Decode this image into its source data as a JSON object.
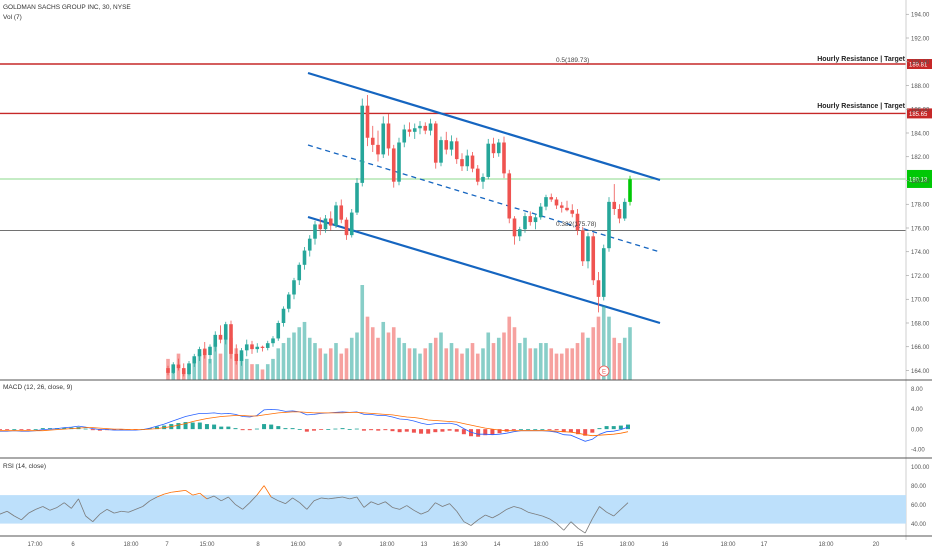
{
  "header": {
    "symbol_line": "GOLDMAN SACHS GROUP INC, 30, NYSE",
    "volume_label": "Vol (7)",
    "macd_label": "MACD (12, 26, close, 9)",
    "rsi_label": "RSI (14, close)"
  },
  "colors": {
    "up": "#26a69a",
    "down": "#ef5350",
    "bright_up": "#00c805",
    "resistance": "#c62828",
    "channel": "#1565c0",
    "fib_line": "#555555",
    "green_level": "#8bd88b",
    "rsi_band": "#bde0fb",
    "macd_line": "#2962ff",
    "signal_line": "#ff6d00",
    "rsi_line": "#7a7a7a",
    "rsi_over": "#ff6d00"
  },
  "annotations": {
    "fib_05": "0.5(189.73)",
    "fib_0382": "0.382(175.78)",
    "resistance_top": "Hourly Resistance | Target",
    "resistance_mid": "Hourly Resistance | Target",
    "earnings_marker": "E"
  },
  "chart_data": {
    "type": "candlestick",
    "symbol": "GOLDMAN SACHS GROUP INC",
    "interval": "30",
    "exchange": "NYSE",
    "x_ticks": [
      "17:00",
      "6",
      "18:00",
      "7",
      "15:00",
      "8",
      "16:00",
      "9",
      "18:00",
      "13",
      "16:30",
      "14",
      "18:00",
      "15",
      "18:00",
      "16",
      "18:00",
      "17",
      "18:00",
      "20"
    ],
    "price_axis": {
      "ticks": [
        194.0,
        192.0,
        190.0,
        188.0,
        186.0,
        184.0,
        182.0,
        180.0,
        178.0,
        176.0,
        174.0,
        172.0,
        170.0,
        168.0,
        166.0,
        164.0
      ],
      "range": [
        163.2,
        195.2
      ]
    },
    "levels": [
      {
        "label": "Hourly Resistance | Target",
        "price": "189.81"
      },
      {
        "label": "Hourly Resistance | Target",
        "price": "185.65"
      }
    ],
    "green_level_price": "180.13",
    "fib_0382_price": 175.78,
    "candles": [
      {
        "o": 164.2,
        "h": 164.4,
        "l": 163.6,
        "c": 163.8
      },
      {
        "o": 163.8,
        "h": 164.7,
        "l": 163.7,
        "c": 164.5
      },
      {
        "o": 164.5,
        "h": 165.0,
        "l": 164.0,
        "c": 164.2
      },
      {
        "o": 164.2,
        "h": 164.6,
        "l": 163.5,
        "c": 163.7
      },
      {
        "o": 163.7,
        "h": 164.8,
        "l": 163.6,
        "c": 164.6
      },
      {
        "o": 164.6,
        "h": 165.4,
        "l": 164.3,
        "c": 165.2
      },
      {
        "o": 165.2,
        "h": 166.0,
        "l": 164.8,
        "c": 165.8
      },
      {
        "o": 165.8,
        "h": 166.4,
        "l": 165.0,
        "c": 165.3
      },
      {
        "o": 165.3,
        "h": 166.2,
        "l": 164.6,
        "c": 166.0
      },
      {
        "o": 166.0,
        "h": 167.3,
        "l": 165.6,
        "c": 167.0
      },
      {
        "o": 167.0,
        "h": 167.8,
        "l": 166.3,
        "c": 166.6
      },
      {
        "o": 166.6,
        "h": 168.1,
        "l": 166.2,
        "c": 167.9
      },
      {
        "o": 167.9,
        "h": 168.2,
        "l": 165.0,
        "c": 165.4
      },
      {
        "o": 165.4,
        "h": 166.2,
        "l": 164.5,
        "c": 164.8
      },
      {
        "o": 164.8,
        "h": 165.9,
        "l": 164.4,
        "c": 165.7
      },
      {
        "o": 165.7,
        "h": 166.6,
        "l": 165.2,
        "c": 166.2
      },
      {
        "o": 166.2,
        "h": 166.5,
        "l": 165.4,
        "c": 165.8
      },
      {
        "o": 165.8,
        "h": 166.3,
        "l": 165.5,
        "c": 166.0
      },
      {
        "o": 166.0,
        "h": 166.1,
        "l": 165.6,
        "c": 165.9
      },
      {
        "o": 165.9,
        "h": 166.5,
        "l": 165.7,
        "c": 166.3
      },
      {
        "o": 166.3,
        "h": 166.9,
        "l": 166.0,
        "c": 166.7
      },
      {
        "o": 166.7,
        "h": 168.2,
        "l": 166.5,
        "c": 168.0
      },
      {
        "o": 168.0,
        "h": 169.4,
        "l": 167.7,
        "c": 169.2
      },
      {
        "o": 169.2,
        "h": 170.6,
        "l": 168.9,
        "c": 170.4
      },
      {
        "o": 170.4,
        "h": 171.8,
        "l": 170.0,
        "c": 171.6
      },
      {
        "o": 171.6,
        "h": 173.1,
        "l": 171.2,
        "c": 172.9
      },
      {
        "o": 172.9,
        "h": 174.4,
        "l": 172.5,
        "c": 174.1
      },
      {
        "o": 174.1,
        "h": 175.4,
        "l": 173.6,
        "c": 175.1
      },
      {
        "o": 175.1,
        "h": 176.6,
        "l": 174.6,
        "c": 176.3
      },
      {
        "o": 176.3,
        "h": 176.9,
        "l": 175.4,
        "c": 175.9
      },
      {
        "o": 175.9,
        "h": 177.1,
        "l": 175.6,
        "c": 176.8
      },
      {
        "o": 176.8,
        "h": 177.4,
        "l": 175.8,
        "c": 176.2
      },
      {
        "o": 176.2,
        "h": 178.2,
        "l": 176.0,
        "c": 177.9
      },
      {
        "o": 177.9,
        "h": 178.4,
        "l": 176.4,
        "c": 176.7
      },
      {
        "o": 176.7,
        "h": 176.9,
        "l": 175.0,
        "c": 175.4
      },
      {
        "o": 175.4,
        "h": 177.6,
        "l": 175.2,
        "c": 177.3
      },
      {
        "o": 177.3,
        "h": 180.2,
        "l": 177.1,
        "c": 179.8
      },
      {
        "o": 179.8,
        "h": 186.9,
        "l": 179.5,
        "c": 186.3
      },
      {
        "o": 186.3,
        "h": 187.2,
        "l": 182.9,
        "c": 183.6
      },
      {
        "o": 183.6,
        "h": 184.6,
        "l": 182.4,
        "c": 183.0
      },
      {
        "o": 183.0,
        "h": 184.2,
        "l": 181.6,
        "c": 182.2
      },
      {
        "o": 182.2,
        "h": 185.4,
        "l": 181.9,
        "c": 184.8
      },
      {
        "o": 184.8,
        "h": 185.6,
        "l": 182.1,
        "c": 182.7
      },
      {
        "o": 182.7,
        "h": 183.0,
        "l": 179.4,
        "c": 179.9
      },
      {
        "o": 179.9,
        "h": 183.6,
        "l": 179.6,
        "c": 183.2
      },
      {
        "o": 183.2,
        "h": 184.7,
        "l": 182.8,
        "c": 184.3
      },
      {
        "o": 184.3,
        "h": 184.9,
        "l": 183.7,
        "c": 184.1
      },
      {
        "o": 184.1,
        "h": 184.8,
        "l": 183.5,
        "c": 184.4
      },
      {
        "o": 184.4,
        "h": 185.0,
        "l": 183.9,
        "c": 184.6
      },
      {
        "o": 184.6,
        "h": 184.9,
        "l": 183.9,
        "c": 184.2
      },
      {
        "o": 184.2,
        "h": 185.2,
        "l": 183.8,
        "c": 184.8
      },
      {
        "o": 184.8,
        "h": 185.0,
        "l": 181.0,
        "c": 181.5
      },
      {
        "o": 181.5,
        "h": 183.7,
        "l": 181.2,
        "c": 183.4
      },
      {
        "o": 183.4,
        "h": 184.1,
        "l": 182.2,
        "c": 182.6
      },
      {
        "o": 182.6,
        "h": 183.8,
        "l": 182.1,
        "c": 183.3
      },
      {
        "o": 183.3,
        "h": 183.6,
        "l": 181.4,
        "c": 181.8
      },
      {
        "o": 181.8,
        "h": 182.3,
        "l": 180.8,
        "c": 181.2
      },
      {
        "o": 181.2,
        "h": 182.6,
        "l": 180.8,
        "c": 182.1
      },
      {
        "o": 182.1,
        "h": 182.4,
        "l": 180.7,
        "c": 181.0
      },
      {
        "o": 181.0,
        "h": 181.3,
        "l": 179.6,
        "c": 179.9
      },
      {
        "o": 179.9,
        "h": 180.6,
        "l": 179.3,
        "c": 180.3
      },
      {
        "o": 180.3,
        "h": 183.5,
        "l": 180.1,
        "c": 183.1
      },
      {
        "o": 183.1,
        "h": 183.6,
        "l": 181.9,
        "c": 182.3
      },
      {
        "o": 182.3,
        "h": 183.5,
        "l": 182.0,
        "c": 183.2
      },
      {
        "o": 183.2,
        "h": 183.7,
        "l": 180.2,
        "c": 180.6
      },
      {
        "o": 180.6,
        "h": 180.9,
        "l": 176.4,
        "c": 176.8
      },
      {
        "o": 176.8,
        "h": 177.0,
        "l": 174.6,
        "c": 175.3
      },
      {
        "o": 175.3,
        "h": 176.1,
        "l": 174.9,
        "c": 175.9
      },
      {
        "o": 175.9,
        "h": 177.3,
        "l": 175.6,
        "c": 177.0
      },
      {
        "o": 177.0,
        "h": 177.4,
        "l": 176.2,
        "c": 176.5
      },
      {
        "o": 176.5,
        "h": 177.2,
        "l": 175.9,
        "c": 176.9
      },
      {
        "o": 176.9,
        "h": 178.1,
        "l": 176.7,
        "c": 177.8
      },
      {
        "o": 177.8,
        "h": 178.8,
        "l": 177.5,
        "c": 178.6
      },
      {
        "o": 178.6,
        "h": 178.9,
        "l": 178.2,
        "c": 178.4
      },
      {
        "o": 178.4,
        "h": 178.6,
        "l": 177.6,
        "c": 177.9
      },
      {
        "o": 177.9,
        "h": 178.2,
        "l": 177.3,
        "c": 177.7
      },
      {
        "o": 177.7,
        "h": 178.3,
        "l": 177.4,
        "c": 177.5
      },
      {
        "o": 177.5,
        "h": 178.0,
        "l": 176.9,
        "c": 177.2
      },
      {
        "o": 177.2,
        "h": 177.6,
        "l": 175.4,
        "c": 175.8
      },
      {
        "o": 175.8,
        "h": 176.1,
        "l": 172.8,
        "c": 173.2
      },
      {
        "o": 173.2,
        "h": 175.6,
        "l": 172.6,
        "c": 175.3
      },
      {
        "o": 175.3,
        "h": 175.6,
        "l": 171.2,
        "c": 171.6
      },
      {
        "o": 171.6,
        "h": 172.3,
        "l": 168.9,
        "c": 170.2
      },
      {
        "o": 170.2,
        "h": 174.6,
        "l": 169.9,
        "c": 174.3
      },
      {
        "o": 174.3,
        "h": 178.6,
        "l": 174.0,
        "c": 178.2
      },
      {
        "o": 178.2,
        "h": 179.7,
        "l": 177.1,
        "c": 177.6
      },
      {
        "o": 177.6,
        "h": 178.0,
        "l": 176.4,
        "c": 176.8
      },
      {
        "o": 176.8,
        "h": 178.5,
        "l": 176.6,
        "c": 178.2
      },
      {
        "o": 178.2,
        "h": 180.4,
        "l": 177.9,
        "c": 180.1
      }
    ],
    "volume": [
      4,
      3,
      5,
      2,
      3,
      4,
      5,
      6,
      4,
      7,
      5,
      9,
      8,
      6,
      5,
      4,
      3,
      3,
      2,
      3,
      4,
      6,
      7,
      8,
      9,
      10,
      11,
      8,
      7,
      6,
      5,
      6,
      7,
      5,
      6,
      8,
      9,
      18,
      12,
      10,
      8,
      11,
      9,
      10,
      8,
      7,
      6,
      6,
      5,
      6,
      7,
      8,
      9,
      6,
      7,
      6,
      5,
      6,
      7,
      5,
      6,
      9,
      7,
      8,
      9,
      12,
      10,
      7,
      8,
      6,
      6,
      7,
      7,
      6,
      5,
      5,
      6,
      6,
      7,
      9,
      8,
      10,
      12,
      14,
      12,
      8,
      7,
      8,
      10
    ],
    "macd": {
      "range": [
        -5.5,
        9.5
      ],
      "ticks": [
        "8.00",
        "4.00",
        "0.00",
        "-4.00"
      ],
      "line": [
        -0.4,
        -0.4,
        -0.3,
        -0.4,
        -0.4,
        -0.3,
        -0.1,
        0.0,
        0.1,
        0.3,
        0.4,
        0.6,
        0.4,
        0.1,
        -0.1,
        -0.1,
        -0.2,
        -0.2,
        -0.2,
        -0.2,
        -0.1,
        0.2,
        0.6,
        1.0,
        1.5,
        2.0,
        2.5,
        2.8,
        3.1,
        3.1,
        3.2,
        3.0,
        3.1,
        2.9,
        2.5,
        2.4,
        2.7,
        3.8,
        3.9,
        3.8,
        3.5,
        3.6,
        3.4,
        2.8,
        2.9,
        3.1,
        3.2,
        3.3,
        3.4,
        3.3,
        3.4,
        2.9,
        2.9,
        2.7,
        2.7,
        2.4,
        2.0,
        1.9,
        1.6,
        1.2,
        0.9,
        1.1,
        1.1,
        1.2,
        0.9,
        0.1,
        -0.6,
        -1.0,
        -1.0,
        -1.1,
        -1.0,
        -0.8,
        -0.5,
        -0.3,
        -0.3,
        -0.3,
        -0.3,
        -0.4,
        -0.6,
        -1.1,
        -1.2,
        -1.8,
        -2.4,
        -2.0,
        -1.0,
        -0.5,
        -0.4,
        -0.1,
        0.4
      ],
      "signal": [
        -0.3,
        -0.3,
        -0.3,
        -0.3,
        -0.3,
        -0.3,
        -0.3,
        -0.2,
        -0.1,
        0.0,
        0.1,
        0.2,
        0.3,
        0.3,
        0.2,
        0.1,
        0.0,
        0.0,
        -0.1,
        -0.1,
        -0.1,
        0.0,
        0.1,
        0.3,
        0.5,
        0.8,
        1.1,
        1.5,
        1.8,
        2.1,
        2.3,
        2.5,
        2.6,
        2.7,
        2.7,
        2.6,
        2.6,
        2.8,
        3.0,
        3.2,
        3.3,
        3.4,
        3.4,
        3.3,
        3.2,
        3.2,
        3.2,
        3.2,
        3.2,
        3.3,
        3.3,
        3.2,
        3.1,
        3.0,
        2.9,
        2.8,
        2.6,
        2.4,
        2.3,
        2.1,
        1.8,
        1.7,
        1.6,
        1.5,
        1.4,
        1.1,
        0.8,
        0.5,
        0.2,
        0.0,
        -0.2,
        -0.3,
        -0.3,
        -0.3,
        -0.3,
        -0.3,
        -0.3,
        -0.3,
        -0.4,
        -0.5,
        -0.6,
        -0.8,
        -1.1,
        -1.3,
        -1.2,
        -1.1,
        -1.0,
        -0.8,
        -0.5
      ]
    },
    "rsi": {
      "range": [
        28,
        108
      ],
      "ticks": [
        "100.00",
        "80.00",
        "60.00",
        "40.00"
      ],
      "band": [
        40,
        70
      ],
      "values": [
        50,
        53,
        48,
        44,
        51,
        55,
        58,
        54,
        57,
        62,
        56,
        66,
        48,
        42,
        50,
        55,
        51,
        53,
        52,
        55,
        58,
        64,
        68,
        71,
        73,
        74,
        75,
        70,
        72,
        66,
        69,
        64,
        68,
        60,
        55,
        62,
        70,
        80,
        68,
        64,
        61,
        67,
        62,
        55,
        64,
        67,
        66,
        67,
        68,
        66,
        68,
        57,
        63,
        60,
        63,
        57,
        55,
        59,
        54,
        50,
        53,
        62,
        58,
        61,
        53,
        42,
        38,
        44,
        49,
        46,
        50,
        55,
        58,
        56,
        52,
        50,
        48,
        45,
        40,
        33,
        42,
        35,
        30,
        45,
        58,
        52,
        48,
        55,
        62
      ]
    }
  }
}
